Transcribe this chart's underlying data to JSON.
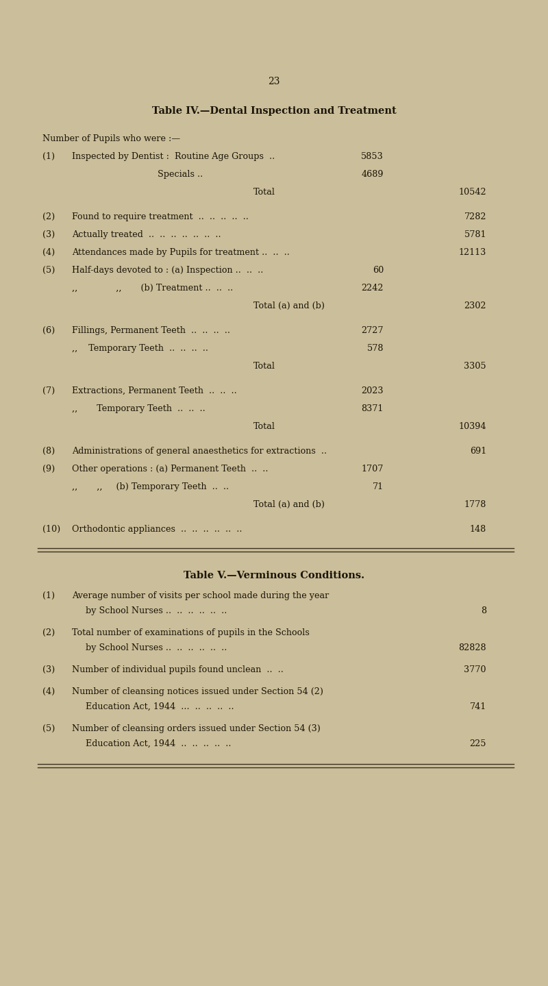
{
  "page_number": "23",
  "bg_color": "#cbbe9a",
  "text_color": "#1a1508",
  "table4_title": "Table IV.—Dental Inspection and Treatment",
  "table4_subtitle": "Number of Pupils who were :—",
  "table4_rows": [
    {
      "num": "(1)",
      "label": "Inspected by Dentist :  Routine Age Groups  ..",
      "sub_val": "5853",
      "total_val": "",
      "indent": 0
    },
    {
      "num": "",
      "label": "Specials ..",
      "sub_val": "4689",
      "total_val": "",
      "indent": 1
    },
    {
      "num": "",
      "label": "Total",
      "sub_val": "",
      "total_val": "10542",
      "indent": 2,
      "is_total": true,
      "extra_gap_before": false
    },
    {
      "num": "(2)",
      "label": "Found to require treatment  ..  ..  ..  ..  ..",
      "sub_val": "",
      "total_val": "7282",
      "indent": 0,
      "extra_gap_before": true
    },
    {
      "num": "(3)",
      "label": "Actually treated  ..  ..  ..  ..  ..  ..  ..",
      "sub_val": "",
      "total_val": "5781",
      "indent": 0,
      "extra_gap_before": false
    },
    {
      "num": "(4)",
      "label": "Attendances made by Pupils for treatment ..  ..  ..",
      "sub_val": "",
      "total_val": "12113",
      "indent": 0,
      "extra_gap_before": false
    },
    {
      "num": "(5)",
      "label": "Half-days devoted to : (a) Inspection ..  ..  ..",
      "sub_val": "60",
      "total_val": "",
      "indent": 0,
      "extra_gap_before": false
    },
    {
      "num": "",
      "label": ",,              ,,       (b) Treatment ..  ..  ..",
      "sub_val": "2242",
      "total_val": "",
      "indent": 0,
      "extra_gap_before": false
    },
    {
      "num": "",
      "label": "Total (a) and (b)",
      "sub_val": "",
      "total_val": "2302",
      "indent": 2,
      "is_total": true,
      "extra_gap_before": false
    },
    {
      "num": "(6)",
      "label": "Fillings, Permanent Teeth  ..  ..  ..  ..",
      "sub_val": "2727",
      "total_val": "",
      "indent": 0,
      "extra_gap_before": true
    },
    {
      "num": "",
      "label": ",,    Temporary Teeth  ..  ..  ..  ..",
      "sub_val": "578",
      "total_val": "",
      "indent": 0,
      "extra_gap_before": false
    },
    {
      "num": "",
      "label": "Total",
      "sub_val": "",
      "total_val": "3305",
      "indent": 2,
      "is_total": true,
      "extra_gap_before": false
    },
    {
      "num": "(7)",
      "label": "Extractions, Permanent Teeth  ..  ..  ..",
      "sub_val": "2023",
      "total_val": "",
      "indent": 0,
      "extra_gap_before": true
    },
    {
      "num": "",
      "label": ",,       Temporary Teeth  ..  ..  ..",
      "sub_val": "8371",
      "total_val": "",
      "indent": 0,
      "extra_gap_before": false
    },
    {
      "num": "",
      "label": "Total",
      "sub_val": "",
      "total_val": "10394",
      "indent": 2,
      "is_total": true,
      "extra_gap_before": false
    },
    {
      "num": "(8)",
      "label": "Administrations of general anaesthetics for extractions  ..",
      "sub_val": "",
      "total_val": "691",
      "indent": 0,
      "extra_gap_before": true
    },
    {
      "num": "(9)",
      "label": "Other operations : (a) Permanent Teeth  ..  ..",
      "sub_val": "1707",
      "total_val": "",
      "indent": 0,
      "extra_gap_before": false
    },
    {
      "num": "",
      "label": ",,       ,,     (b) Temporary Teeth  ..  ..",
      "sub_val": "71",
      "total_val": "",
      "indent": 0,
      "extra_gap_before": false
    },
    {
      "num": "",
      "label": "Total (a) and (b)",
      "sub_val": "",
      "total_val": "1778",
      "indent": 2,
      "is_total": true,
      "extra_gap_before": false
    },
    {
      "num": "(10)",
      "label": "Orthodontic appliances  ..  ..  ..  ..  ..  ..",
      "sub_val": "",
      "total_val": "148",
      "indent": 0,
      "extra_gap_before": true
    }
  ],
  "table5_title": "Table V.—Verminous Conditions.",
  "table5_rows": [
    {
      "num": "(1)",
      "label_line1": "Average number of visits per school made during the year",
      "label_line2": "by School Nurses ..  ..  ..  ..  ..  ..",
      "value": "8"
    },
    {
      "num": "(2)",
      "label_line1": "Total number of examinations of pupils in the Schools",
      "label_line2": "by School Nurses ..  ..  ..  ..  ..  ..",
      "value": "82828"
    },
    {
      "num": "(3)",
      "label_line1": "Number of individual pupils found unclean  ..  ..",
      "label_line2": "",
      "value": "3770"
    },
    {
      "num": "(4)",
      "label_line1": "Number of cleansing notices issued under Section 54 (2)",
      "label_line2": "Education Act, 1944  ...  ..  ..  ..  ..",
      "value": "741"
    },
    {
      "num": "(5)",
      "label_line1": "Number of cleansing orders issued under Section 54 (3)",
      "label_line2": "Education Act, 1944  ..  ..  ..  ..  ..",
      "value": "225"
    }
  ],
  "divider_color": "#3a3020",
  "title_fontsize": 10.5,
  "body_fontsize": 9.2,
  "page_num_fontsize": 10
}
